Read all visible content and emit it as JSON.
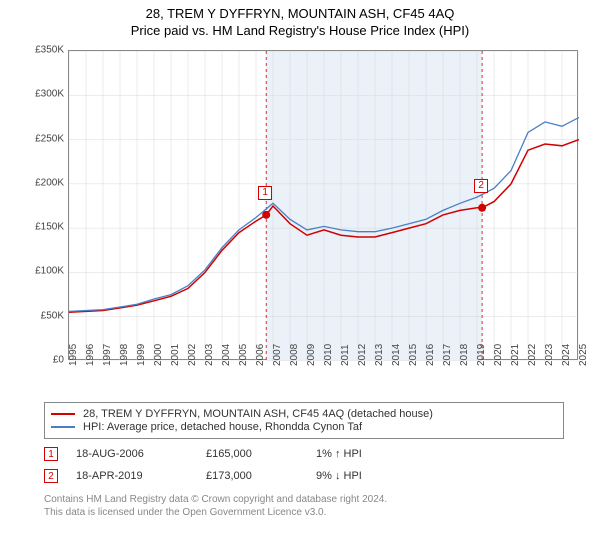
{
  "title_line1": "28, TREM Y DYFFRYN, MOUNTAIN ASH, CF45 4AQ",
  "title_line2": "Price paid vs. HM Land Registry's House Price Index (HPI)",
  "chart": {
    "type": "line",
    "background_color": "#ffffff",
    "shaded_region_color": "#eaf1f8",
    "border_color": "#888888",
    "grid_color": "#d8d8d8",
    "xlim": [
      1995,
      2025
    ],
    "ylim": [
      0,
      350000
    ],
    "ytick_step": 50000,
    "yticks": [
      "£0",
      "£50K",
      "£100K",
      "£150K",
      "£200K",
      "£250K",
      "£300K",
      "£350K"
    ],
    "xticks": [
      "1995",
      "1996",
      "1997",
      "1998",
      "1999",
      "2000",
      "2001",
      "2002",
      "2003",
      "2004",
      "2005",
      "2006",
      "2007",
      "2008",
      "2009",
      "2010",
      "2011",
      "2012",
      "2013",
      "2014",
      "2015",
      "2016",
      "2017",
      "2018",
      "2019",
      "2020",
      "2021",
      "2022",
      "2023",
      "2024",
      "2025"
    ],
    "shaded_x_range": [
      2006.6,
      2019.3
    ],
    "series": [
      {
        "name": "property",
        "label": "28, TREM Y DYFFRYN, MOUNTAIN ASH, CF45 4AQ (detached house)",
        "color": "#d30000",
        "line_width": 1.5,
        "x": [
          1995,
          1996,
          1997,
          1998,
          1999,
          2000,
          2001,
          2002,
          2003,
          2004,
          2005,
          2006,
          2006.6,
          2007,
          2008,
          2009,
          2010,
          2011,
          2012,
          2013,
          2014,
          2015,
          2016,
          2017,
          2018,
          2019,
          2019.3,
          2020,
          2021,
          2022,
          2023,
          2024,
          2025
        ],
        "y": [
          55000,
          56000,
          57000,
          60000,
          63000,
          68000,
          73000,
          82000,
          100000,
          125000,
          145000,
          158000,
          165000,
          175000,
          155000,
          142000,
          148000,
          142000,
          140000,
          140000,
          145000,
          150000,
          155000,
          165000,
          170000,
          173000,
          173000,
          180000,
          200000,
          238000,
          245000,
          243000,
          250000
        ]
      },
      {
        "name": "hpi",
        "label": "HPI: Average price, detached house, Rhondda Cynon Taf",
        "color": "#4a7fc7",
        "line_width": 1.3,
        "x": [
          1995,
          1996,
          1997,
          1998,
          1999,
          2000,
          2001,
          2002,
          2003,
          2004,
          2005,
          2006,
          2007,
          2008,
          2009,
          2010,
          2011,
          2012,
          2013,
          2014,
          2015,
          2016,
          2017,
          2018,
          2019,
          2020,
          2021,
          2022,
          2023,
          2024,
          2025
        ],
        "y": [
          56000,
          57000,
          58000,
          61000,
          64000,
          70000,
          75000,
          85000,
          103000,
          128000,
          148000,
          162000,
          178000,
          160000,
          148000,
          152000,
          148000,
          146000,
          146000,
          150000,
          155000,
          160000,
          170000,
          178000,
          185000,
          195000,
          215000,
          258000,
          270000,
          265000,
          275000
        ]
      }
    ],
    "sale_markers": [
      {
        "num": "1",
        "x": 2006.6,
        "y": 165000,
        "color": "#d30000"
      },
      {
        "num": "2",
        "x": 2019.3,
        "y": 173000,
        "color": "#d30000"
      }
    ],
    "marker_dashed_color": "#d30000"
  },
  "legend": {
    "property_label": "28, TREM Y DYFFRYN, MOUNTAIN ASH, CF45 4AQ (detached house)",
    "hpi_label": "HPI: Average price, detached house, Rhondda Cynon Taf",
    "property_color": "#d30000",
    "hpi_color": "#4a7fc7"
  },
  "sales": [
    {
      "num": "1",
      "date": "18-AUG-2006",
      "price": "£165,000",
      "pct": "1% ↑ HPI",
      "color": "#d30000"
    },
    {
      "num": "2",
      "date": "18-APR-2019",
      "price": "£173,000",
      "pct": "9% ↓ HPI",
      "color": "#d30000"
    }
  ],
  "footer_line1": "Contains HM Land Registry data © Crown copyright and database right 2024.",
  "footer_line2": "This data is licensed under the Open Government Licence v3.0."
}
